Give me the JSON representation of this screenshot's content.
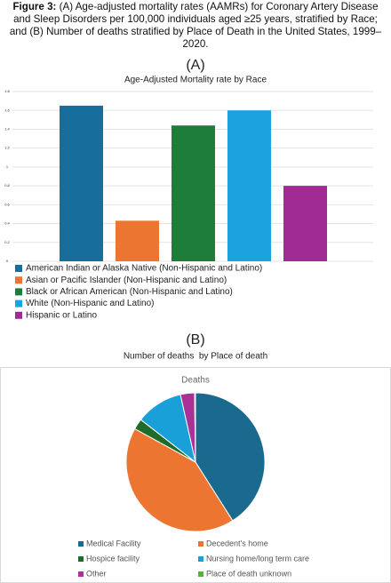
{
  "caption": {
    "label": "Figure 3:",
    "text": "(A) Age-adjusted mortality rates (AAMRs) for Coronary Artery Disease and Sleep Disorders per 100,000 individuals aged ≥25 years, stratified by Race; and (B) Number of deaths stratified by Place of Death in the United States, 1999–2020."
  },
  "chart_data": [
    {
      "type": "bar",
      "label": "(A)",
      "title": "Age-Adjusted Mortality rate by Race",
      "categories": [
        "American Indian or Alaska Native (Non-Hispanic and Latino)",
        "Asian or Pacific Islander (Non-Hispanic and Latino)",
        "Black or African American (Non-Hispanic and Latino)",
        "White (Non-Hispanic and Latino)",
        "Hispanic or Latino"
      ],
      "values": [
        1.65,
        0.43,
        1.44,
        1.6,
        0.8
      ],
      "colors": [
        "#176d9c",
        "#ec7532",
        "#1f7d3a",
        "#1ba3dd",
        "#a02b93"
      ],
      "ylim": [
        0,
        1.8
      ],
      "yticks": [
        0,
        0.2,
        0.4,
        0.6,
        0.8,
        1,
        1.2,
        1.4,
        1.6,
        1.8
      ],
      "grid": true
    },
    {
      "type": "pie",
      "label": "(B)",
      "title": "Number of deaths  by Place of death",
      "subtitle": "Deaths",
      "categories": [
        "Medical Facility",
        "Decedent's home",
        "Hospice facility",
        "Nursing home/long term care",
        "Other",
        "Place of death unknown"
      ],
      "values": [
        41,
        42,
        2.5,
        11,
        3.3,
        0.2
      ],
      "colors": [
        "#1a6a8f",
        "#ec7532",
        "#1f6b2a",
        "#1aa0d8",
        "#a83296",
        "#5aae3c"
      ]
    }
  ]
}
